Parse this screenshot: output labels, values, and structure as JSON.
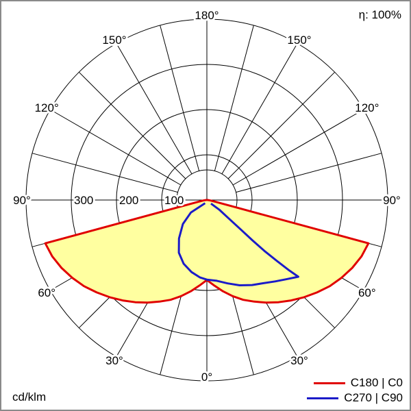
{
  "header": {
    "efficiency": "η: 100%"
  },
  "footer": {
    "unit": "cd/klm"
  },
  "legend": [
    {
      "label": "C180 | C0",
      "color": "#e00000"
    },
    {
      "label": "C270 | C90",
      "color": "#1b1bc8"
    }
  ],
  "chart_data": {
    "type": "polar_luminous_intensity",
    "unit": "cd/klm",
    "efficiency": "η: 100%",
    "orientation": "0 deg at bottom (nadir), 180 deg at top, angles mirrored left/right",
    "radial_ticks": [
      100,
      200,
      300
    ],
    "radial_tick_labels": [
      "100",
      "200",
      "300"
    ],
    "radial_max": 400,
    "angle_ticks_deg": [
      0,
      30,
      60,
      90,
      120,
      150,
      180
    ],
    "angle_tick_labels": [
      "0°",
      "30°",
      "60°",
      "90°",
      "120°",
      "150°",
      "180°"
    ],
    "grid": {
      "spoke_step_deg": 15,
      "rings": [
        100,
        200,
        300,
        400
      ]
    },
    "series": [
      {
        "name": "C180 | C0",
        "color": "#e00000",
        "fill": "#ffffa0",
        "points_gamma_cd": [
          [
            -90,
            2
          ],
          [
            -82,
            8
          ],
          [
            -78,
            20
          ],
          [
            -76,
            60
          ],
          [
            -75,
            370
          ],
          [
            -70,
            364
          ],
          [
            -65,
            355
          ],
          [
            -60,
            344
          ],
          [
            -55,
            332
          ],
          [
            -50,
            318
          ],
          [
            -45,
            304
          ],
          [
            -40,
            290
          ],
          [
            -35,
            276
          ],
          [
            -30,
            262
          ],
          [
            -25,
            248
          ],
          [
            -20,
            235
          ],
          [
            -15,
            220
          ],
          [
            -10,
            205
          ],
          [
            -5,
            190
          ],
          [
            0,
            177
          ],
          [
            5,
            190
          ],
          [
            10,
            205
          ],
          [
            15,
            220
          ],
          [
            20,
            235
          ],
          [
            25,
            248
          ],
          [
            30,
            262
          ],
          [
            35,
            276
          ],
          [
            40,
            290
          ],
          [
            45,
            304
          ],
          [
            50,
            318
          ],
          [
            55,
            332
          ],
          [
            60,
            344
          ],
          [
            65,
            355
          ],
          [
            70,
            364
          ],
          [
            75,
            370
          ],
          [
            76,
            60
          ],
          [
            78,
            20
          ],
          [
            82,
            8
          ],
          [
            90,
            2
          ]
        ]
      },
      {
        "name": "C270 | C90",
        "color": "#1b1bc8",
        "fill": null,
        "points_gamma_cd": [
          [
            -30,
            8
          ],
          [
            -52,
            45
          ],
          [
            -45,
            75
          ],
          [
            -36,
            105
          ],
          [
            -28,
            132
          ],
          [
            -20,
            150
          ],
          [
            -12,
            163
          ],
          [
            -5,
            172
          ],
          [
            0,
            176
          ],
          [
            7,
            180
          ],
          [
            14,
            190
          ],
          [
            21,
            202
          ],
          [
            28,
            213
          ],
          [
            34,
            222
          ],
          [
            40,
            235
          ],
          [
            45,
            248
          ],
          [
            50,
            264
          ],
          [
            49.5,
            240
          ],
          [
            49,
            205
          ],
          [
            48.5,
            170
          ],
          [
            48.5,
            135
          ],
          [
            49,
            100
          ],
          [
            50,
            62
          ],
          [
            52,
            36
          ],
          [
            49,
            12
          ]
        ]
      }
    ]
  }
}
